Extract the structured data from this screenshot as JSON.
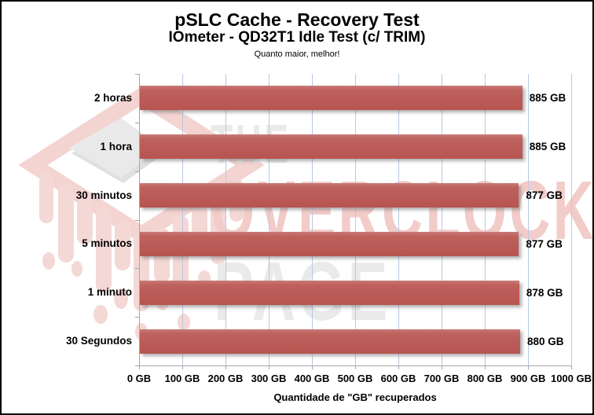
{
  "header": {
    "title": "pSLC Cache - Recovery Test",
    "subtitle": "IOmeter - QD32T1 Idle Test (c/ TRIM)",
    "note": "Quanto maior, melhor!"
  },
  "watermark": {
    "line1": "THE",
    "line2": "OVERCLOCK",
    "line3": "PAGE"
  },
  "chart_data": {
    "type": "bar",
    "orientation": "horizontal",
    "title": "pSLC Cache - Recovery Test",
    "subtitle": "IOmeter - QD32T1 Idle Test (c/ TRIM)",
    "annotation": "Quanto maior, melhor!",
    "categories": [
      "2 horas",
      "1 hora",
      "30 minutos",
      "5 minutos",
      "1 minuto",
      "30 Segundos"
    ],
    "values": [
      885,
      885,
      877,
      877,
      878,
      880
    ],
    "value_labels": [
      "885 GB",
      "885 GB",
      "877 GB",
      "877 GB",
      "878 GB",
      "880 GB"
    ],
    "xlabel": "Quantidade de \"GB\" recuperados",
    "ylabel": "",
    "xlim": [
      0,
      1000
    ],
    "xticks": [
      0,
      100,
      200,
      300,
      400,
      500,
      600,
      700,
      800,
      900,
      1000
    ],
    "xtick_labels": [
      "0 GB",
      "100 GB",
      "200 GB",
      "300 GB",
      "400 GB",
      "500 GB",
      "600 GB",
      "700 GB",
      "800 GB",
      "900 GB",
      "1000 GB"
    ],
    "grid": "vertical gridlines on",
    "legend": "none",
    "colors": {
      "bar": "#BE615D",
      "gridline": "#B9C9E2",
      "axis": "#A6A6A6",
      "text": "#000000",
      "watermark_gray": "#E9E9E9",
      "watermark_pink": "#F3D4D1"
    }
  }
}
